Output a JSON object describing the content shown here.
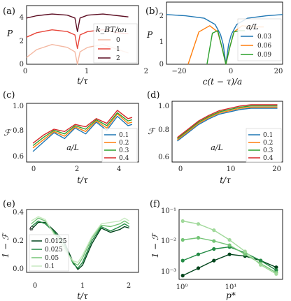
{
  "figure": {
    "panels": [
      {
        "label": "(a)",
        "xlabel": "t/τ",
        "ylabel": "P",
        "xticks": [
          "0",
          "1",
          "2"
        ],
        "yticks": [
          "0",
          "2",
          "4"
        ],
        "legend": {
          "title": "k_BT/ω₁",
          "entries": [
            "0",
            "1",
            "2"
          ]
        }
      },
      {
        "label": "(b)",
        "xlabel": "c(t − τ)/a",
        "ylabel": "P",
        "xticks": [
          "−20",
          "0",
          "20"
        ],
        "yticks": [
          "0",
          "1",
          "2"
        ],
        "legend": {
          "title": "a/L",
          "entries": [
            "0.03",
            "0.06",
            "0.09"
          ]
        }
      },
      {
        "label": "(c)",
        "xlabel": "t/τ",
        "ylabel": "ℱ",
        "xticks": [
          "0",
          "2",
          "4"
        ],
        "yticks": [
          "0.6",
          "0.8",
          "1.0"
        ],
        "legend": {
          "title": "a/L",
          "entries": [
            "0.1",
            "0.2",
            "0.3",
            "0.4"
          ]
        }
      },
      {
        "label": "(d)",
        "xlabel": "t/τ",
        "ylabel": "ℱ",
        "xticks": [
          "0",
          "10",
          "20"
        ],
        "yticks": [
          "0.6",
          "0.8",
          "1.0"
        ],
        "legend": {
          "title": "a/L",
          "entries": [
            "0.1",
            "0.2",
            "0.3",
            "0.4"
          ]
        }
      },
      {
        "label": "(e)",
        "xlabel": "t/τ",
        "ylabel": "1 − ℱ",
        "xticks": [
          "0",
          "1",
          "2"
        ],
        "yticks": [
          "0.0",
          "0.2",
          "0.4"
        ],
        "legend": {
          "title": "ϵ",
          "entries": [
            "0.0125",
            "0.025",
            "0.05",
            "0.1"
          ]
        }
      },
      {
        "label": "(f)",
        "xlabel": "p*",
        "ylabel": "1 − ℱ",
        "xticks": [
          "10⁰",
          "10¹"
        ],
        "yticks": [
          "10⁻³",
          "10⁻²",
          "10⁻¹"
        ],
        "legend": {
          "title": "",
          "entries": []
        }
      }
    ]
  },
  "chart_data": [
    {
      "type": "line",
      "xlim": [
        0,
        2.2
      ],
      "ylim": [
        0,
        5.2
      ],
      "series": [
        {
          "name": "0",
          "color": "#f4b8a2",
          "x": [
            0,
            0.2,
            0.5,
            0.8,
            0.95,
            1.0,
            1.05,
            1.2,
            1.5,
            1.8,
            2.0
          ],
          "y": [
            0.6,
            1.3,
            1.75,
            1.5,
            1.1,
            0.0,
            1.1,
            1.5,
            1.75,
            1.3,
            1.0
          ]
        },
        {
          "name": "1",
          "color": "#e8473b",
          "x": [
            0,
            0.2,
            0.5,
            0.8,
            0.95,
            1.0,
            1.05,
            1.2,
            1.5,
            1.8,
            2.0
          ],
          "y": [
            2.4,
            2.8,
            3.05,
            2.9,
            2.6,
            1.4,
            2.6,
            2.9,
            3.05,
            2.8,
            2.7
          ]
        },
        {
          "name": "2",
          "color": "#5c0d22",
          "x": [
            0,
            0.2,
            0.5,
            0.8,
            0.95,
            1.0,
            1.05,
            1.2,
            1.5,
            1.8,
            2.0
          ],
          "y": [
            4.1,
            4.3,
            4.45,
            4.35,
            4.1,
            2.9,
            4.1,
            4.35,
            4.45,
            4.3,
            4.2
          ]
        }
      ]
    },
    {
      "type": "line",
      "xlim": [
        -22,
        21
      ],
      "ylim": [
        0,
        2.5
      ],
      "series": [
        {
          "name": "0.03",
          "color": "#1f77b4",
          "x": [
            -22,
            -15,
            -8,
            -4,
            -2,
            -1,
            0,
            1,
            2,
            4,
            8,
            15,
            21
          ],
          "y": [
            2.0,
            1.95,
            1.85,
            1.6,
            1.2,
            0.8,
            0.0,
            0.8,
            1.2,
            1.6,
            1.85,
            1.95,
            2.0
          ]
        },
        {
          "name": "0.06",
          "color": "#ff7f0e",
          "x": [
            -14,
            -10,
            -6,
            -3,
            -1.5,
            0,
            1.5,
            3,
            6,
            10,
            14
          ],
          "y": [
            0.0,
            1.3,
            1.55,
            1.3,
            0.7,
            0.0,
            0.7,
            1.3,
            1.55,
            1.5,
            1.5
          ]
        },
        {
          "name": "0.09",
          "color": "#2ca02c",
          "x": [
            -7,
            -5,
            -3,
            -1.5,
            0,
            1.5,
            3,
            5,
            7
          ],
          "y": [
            0.0,
            1.25,
            1.35,
            0.7,
            0.0,
            0.7,
            1.3,
            1.35,
            1.35
          ]
        }
      ]
    },
    {
      "type": "line",
      "xlim": [
        -0.3,
        5.0
      ],
      "ylim": [
        0.55,
        1.05
      ],
      "series": [
        {
          "name": "0.1",
          "color": "#1f77b4",
          "x": [
            0,
            0.5,
            1,
            1.5,
            2,
            2.5,
            3,
            3.5,
            4,
            4.5,
            4.7
          ],
          "y": [
            0.64,
            0.72,
            0.8,
            0.75,
            0.84,
            0.79,
            0.89,
            0.82,
            0.94,
            0.86,
            0.87
          ]
        },
        {
          "name": "0.2",
          "color": "#ff7f0e",
          "x": [
            0,
            0.5,
            1,
            1.5,
            2,
            2.5,
            3,
            3.5,
            4,
            4.5,
            4.7
          ],
          "y": [
            0.67,
            0.74,
            0.81,
            0.77,
            0.85,
            0.81,
            0.9,
            0.84,
            0.96,
            0.88,
            0.89
          ]
        },
        {
          "name": "0.3",
          "color": "#2ca02c",
          "x": [
            0,
            0.5,
            1,
            1.5,
            2,
            2.5,
            3,
            3.5,
            4,
            4.5,
            4.7
          ],
          "y": [
            0.69,
            0.76,
            0.82,
            0.79,
            0.86,
            0.83,
            0.91,
            0.86,
            0.97,
            0.9,
            0.91
          ]
        },
        {
          "name": "0.4",
          "color": "#d62728",
          "x": [
            0,
            0.5,
            1,
            1.5,
            2,
            2.5,
            3,
            3.5,
            4,
            4.5,
            4.7
          ],
          "y": [
            0.71,
            0.78,
            0.83,
            0.81,
            0.87,
            0.85,
            0.92,
            0.88,
            0.99,
            0.92,
            0.93
          ]
        }
      ]
    },
    {
      "type": "line",
      "xlim": [
        -1,
        20
      ],
      "ylim": [
        0.5,
        1.02
      ],
      "series": [
        {
          "name": "0.1",
          "color": "#1f77b4",
          "x": [
            0,
            2,
            4,
            6,
            8,
            10,
            12,
            14,
            16,
            18,
            19
          ],
          "y": [
            0.68,
            0.75,
            0.82,
            0.87,
            0.91,
            0.93,
            0.95,
            0.96,
            0.96,
            0.96,
            0.96
          ]
        },
        {
          "name": "0.2",
          "color": "#ff7f0e",
          "x": [
            0,
            2,
            4,
            6,
            8,
            10,
            12,
            14,
            16,
            18,
            19
          ],
          "y": [
            0.69,
            0.76,
            0.83,
            0.88,
            0.92,
            0.94,
            0.96,
            0.97,
            0.97,
            0.97,
            0.97
          ]
        },
        {
          "name": "0.3",
          "color": "#2ca02c",
          "x": [
            0,
            2,
            4,
            6,
            8,
            10,
            12,
            14,
            16,
            18,
            19
          ],
          "y": [
            0.7,
            0.77,
            0.84,
            0.89,
            0.93,
            0.95,
            0.97,
            0.98,
            0.98,
            0.98,
            0.98
          ]
        },
        {
          "name": "0.4",
          "color": "#d62728",
          "x": [
            0,
            2,
            4,
            6,
            8,
            10,
            12,
            14,
            16,
            18,
            19
          ],
          "y": [
            0.71,
            0.78,
            0.85,
            0.9,
            0.94,
            0.96,
            0.98,
            0.99,
            0.99,
            0.99,
            0.99
          ]
        }
      ]
    },
    {
      "type": "line",
      "xlim": [
        -0.1,
        2.3
      ],
      "ylim": [
        -0.02,
        0.42
      ],
      "series": [
        {
          "name": "0.0125",
          "color": "#00441b",
          "x": [
            0,
            0.15,
            0.3,
            0.5,
            0.7,
            0.9,
            1.0,
            1.1,
            1.3,
            1.5,
            1.7,
            1.9,
            2.0,
            2.1
          ],
          "y": [
            0.28,
            0.33,
            0.33,
            0.27,
            0.2,
            0.05,
            0.0,
            0.03,
            0.18,
            0.29,
            0.26,
            0.28,
            0.3,
            0.29
          ]
        },
        {
          "name": "0.025",
          "color": "#238b45",
          "x": [
            0,
            0.15,
            0.3,
            0.5,
            0.7,
            0.9,
            1.0,
            1.1,
            1.3,
            1.5,
            1.7,
            1.9,
            2.0,
            2.1
          ],
          "y": [
            0.3,
            0.34,
            0.32,
            0.26,
            0.18,
            0.04,
            0.01,
            0.05,
            0.2,
            0.3,
            0.27,
            0.3,
            0.32,
            0.3
          ]
        },
        {
          "name": "0.05",
          "color": "#74c476",
          "x": [
            0,
            0.15,
            0.3,
            0.5,
            0.7,
            0.9,
            1.0,
            1.1,
            1.3,
            1.5,
            1.7,
            1.9,
            2.0,
            2.1
          ],
          "y": [
            0.32,
            0.36,
            0.34,
            0.25,
            0.16,
            0.05,
            0.03,
            0.08,
            0.22,
            0.31,
            0.3,
            0.32,
            0.34,
            0.32
          ]
        },
        {
          "name": "0.1",
          "color": "#c7e9c0",
          "x": [
            0,
            0.15,
            0.3,
            0.5,
            0.7,
            0.9,
            1.0,
            1.1,
            1.3,
            1.5,
            1.7,
            1.9,
            2.0,
            2.1
          ],
          "y": [
            0.34,
            0.37,
            0.35,
            0.24,
            0.14,
            0.06,
            0.05,
            0.1,
            0.23,
            0.32,
            0.33,
            0.34,
            0.36,
            0.34
          ]
        }
      ]
    },
    {
      "type": "scatter",
      "xscale": "log",
      "yscale": "log",
      "xlim": [
        0.85,
        85
      ],
      "ylim": [
        0.0006,
        0.12
      ],
      "series": [
        {
          "color": "#00441b",
          "x": [
            1,
            2,
            4,
            8,
            16,
            32,
            64
          ],
          "y": [
            0.0008,
            0.0014,
            0.0025,
            0.004,
            0.0035,
            0.0025,
            0.0015
          ]
        },
        {
          "color": "#238b45",
          "x": [
            1,
            2,
            4,
            8,
            16,
            32,
            64
          ],
          "y": [
            0.0025,
            0.004,
            0.006,
            0.007,
            0.0045,
            0.0025,
            0.0012
          ]
        },
        {
          "color": "#74c476",
          "x": [
            1,
            2,
            4,
            8,
            16,
            32,
            64
          ],
          "y": [
            0.012,
            0.014,
            0.011,
            0.008,
            0.004,
            0.002,
            0.001
          ]
        },
        {
          "color": "#a1d99b",
          "x": [
            1,
            2,
            4,
            8,
            16,
            32,
            64
          ],
          "y": [
            0.05,
            0.04,
            0.025,
            0.012,
            0.005,
            0.0018,
            0.0009
          ]
        }
      ]
    }
  ]
}
